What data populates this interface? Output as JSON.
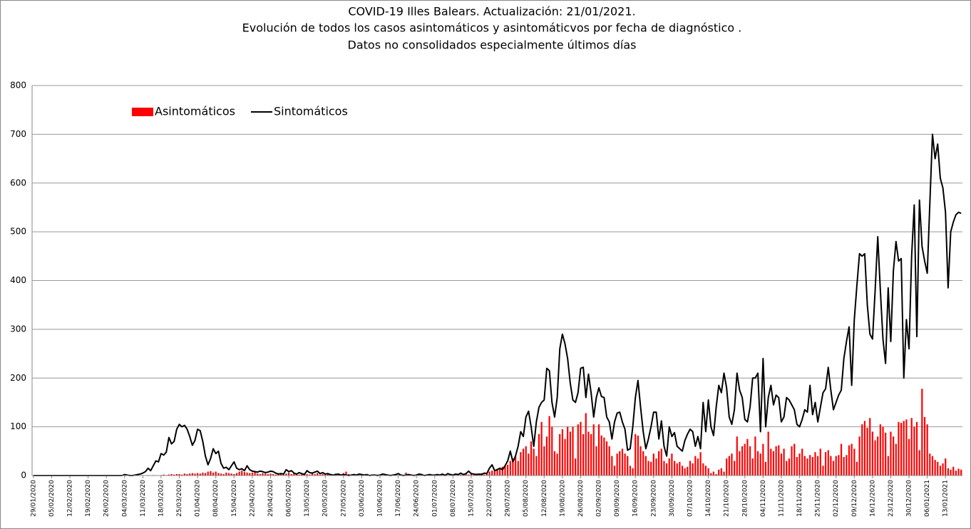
{
  "chart_data": {
    "type": "bar_line",
    "title": [
      "COVID-19 Illes Balears. Actualización: 21/01/2021.",
      "Evolución de todos los casos  asintomáticos y asintomáticvos por fecha de diagnóstico .",
      "Datos no consolidados especialmente últimos días"
    ],
    "categories": [
      "29/01/2020",
      null,
      null,
      null,
      null,
      null,
      null,
      "05/02/2020",
      null,
      null,
      null,
      null,
      null,
      null,
      "12/02/2020",
      null,
      null,
      null,
      null,
      null,
      null,
      "19/02/2020",
      null,
      null,
      null,
      null,
      null,
      null,
      "26/02/2020",
      null,
      null,
      null,
      null,
      null,
      null,
      "04/03/2020",
      null,
      null,
      null,
      null,
      null,
      null,
      "11/03/2020",
      null,
      null,
      null,
      null,
      null,
      null,
      "18/03/2020",
      null,
      null,
      null,
      null,
      null,
      null,
      "25/03/2020",
      null,
      null,
      null,
      null,
      null,
      null,
      "01/04/2020",
      null,
      null,
      null,
      null,
      null,
      null,
      "08/04/2020",
      null,
      null,
      null,
      null,
      null,
      null,
      "15/04/2020",
      null,
      null,
      null,
      null,
      null,
      null,
      "22/04/2020",
      null,
      null,
      null,
      null,
      null,
      null,
      "29/04/2020",
      null,
      null,
      null,
      null,
      null,
      null,
      "06/05/2020",
      null,
      null,
      null,
      null,
      null,
      null,
      "13/05/2020",
      null,
      null,
      null,
      null,
      null,
      null,
      "20/05/2020",
      null,
      null,
      null,
      null,
      null,
      null,
      "27/05/2020",
      null,
      null,
      null,
      null,
      null,
      null,
      "03/06/2020",
      null,
      null,
      null,
      null,
      null,
      null,
      "10/06/2020",
      null,
      null,
      null,
      null,
      null,
      null,
      "17/06/2020",
      null,
      null,
      null,
      null,
      null,
      null,
      "24/06/2020",
      null,
      null,
      null,
      null,
      null,
      null,
      "01/07/2020",
      null,
      null,
      null,
      null,
      null,
      null,
      "08/07/2020",
      null,
      null,
      null,
      null,
      null,
      null,
      "15/07/2020",
      null,
      null,
      null,
      null,
      null,
      null,
      "22/07/2020",
      null,
      null,
      null,
      null,
      null,
      null,
      "29/07/2020",
      null,
      null,
      null,
      null,
      null,
      null,
      "05/08/2020",
      null,
      null,
      null,
      null,
      null,
      null,
      "12/08/2020",
      null,
      null,
      null,
      null,
      null,
      null,
      "19/08/2020",
      null,
      null,
      null,
      null,
      null,
      null,
      "26/08/2020",
      null,
      null,
      null,
      null,
      null,
      null,
      "02/09/2020",
      null,
      null,
      null,
      null,
      null,
      null,
      "09/09/2020",
      null,
      null,
      null,
      null,
      null,
      null,
      "16/09/2020",
      null,
      null,
      null,
      null,
      null,
      null,
      "23/09/2020",
      null,
      null,
      null,
      null,
      null,
      null,
      "30/09/2020",
      null,
      null,
      null,
      null,
      null,
      null,
      "07/10/2020",
      null,
      null,
      null,
      null,
      null,
      null,
      "14/10/2020",
      null,
      null,
      null,
      null,
      null,
      null,
      "21/10/2020",
      null,
      null,
      null,
      null,
      null,
      null,
      "28/10/2020",
      null,
      null,
      null,
      null,
      null,
      null,
      "04/11/2020",
      null,
      null,
      null,
      null,
      null,
      null,
      "11/11/2020",
      null,
      null,
      null,
      null,
      null,
      null,
      "18/11/2020",
      null,
      null,
      null,
      null,
      null,
      null,
      "25/11/2020",
      null,
      null,
      null,
      null,
      null,
      null,
      "02/12/2020",
      null,
      null,
      null,
      null,
      null,
      null,
      "09/12/2020",
      null,
      null,
      null,
      null,
      null,
      null,
      "16/12/2020",
      null,
      null,
      null,
      null,
      null,
      null,
      "23/12/2020",
      null,
      null,
      null,
      null,
      null,
      null,
      "30/12/2020",
      null,
      null,
      null,
      null,
      null,
      null,
      "06/01/2021",
      null,
      null,
      null,
      null,
      null,
      null,
      "13/01/2021",
      null,
      null,
      null,
      null,
      null,
      null
    ],
    "series": [
      {
        "name": "Asintomáticos",
        "type": "bar",
        "color": "#ff0000",
        "values": [
          0,
          0,
          0,
          0,
          0,
          0,
          0,
          0,
          0,
          0,
          0,
          0,
          0,
          0,
          0,
          0,
          0,
          0,
          0,
          0,
          0,
          0,
          0,
          0,
          0,
          0,
          0,
          0,
          0,
          0,
          0,
          0,
          0,
          0,
          0,
          0,
          0,
          0,
          0,
          0,
          0,
          0,
          0,
          0,
          1,
          0,
          1,
          0,
          0,
          1,
          2,
          1,
          2,
          3,
          2,
          3,
          3,
          2,
          4,
          3,
          4,
          5,
          4,
          5,
          4,
          6,
          5,
          8,
          9,
          6,
          8,
          5,
          4,
          3,
          6,
          5,
          4,
          3,
          5,
          8,
          10,
          7,
          6,
          5,
          6,
          8,
          4,
          3,
          5,
          4,
          3,
          4,
          3,
          2,
          5,
          3,
          2,
          4,
          6,
          3,
          5,
          4,
          2,
          3,
          5,
          3,
          2,
          4,
          3,
          5,
          2,
          3,
          2,
          3,
          1,
          2,
          4,
          3,
          2,
          5,
          8,
          3,
          2,
          1,
          2,
          1,
          1,
          0,
          2,
          1,
          0,
          1,
          2,
          0,
          1,
          2,
          1,
          0,
          1,
          0,
          1,
          2,
          0,
          6,
          1,
          0,
          1,
          0,
          2,
          1,
          0,
          1,
          2,
          1,
          1,
          0,
          2,
          1,
          3,
          1,
          2,
          2,
          1,
          3,
          2,
          1,
          4,
          2,
          3,
          2,
          4,
          3,
          5,
          2,
          4,
          8,
          10,
          12,
          14,
          15,
          18,
          20,
          22,
          30,
          35,
          40,
          30,
          48,
          55,
          60,
          45,
          70,
          55,
          40,
          85,
          110,
          60,
          80,
          122,
          100,
          50,
          45,
          85,
          95,
          75,
          100,
          90,
          100,
          35,
          105,
          110,
          85,
          128,
          90,
          85,
          105,
          60,
          105,
          82,
          78,
          70,
          60,
          40,
          20,
          45,
          50,
          55,
          45,
          40,
          20,
          15,
          85,
          82,
          60,
          50,
          40,
          30,
          28,
          45,
          35,
          50,
          55,
          30,
          25,
          35,
          45,
          30,
          25,
          28,
          20,
          15,
          18,
          30,
          25,
          40,
          35,
          48,
          25,
          20,
          15,
          5,
          8,
          3,
          12,
          15,
          8,
          35,
          40,
          45,
          30,
          80,
          50,
          60,
          65,
          75,
          60,
          35,
          80,
          50,
          45,
          65,
          28,
          90,
          55,
          50,
          60,
          62,
          45,
          55,
          30,
          35,
          60,
          65,
          38,
          45,
          55,
          40,
          35,
          42,
          38,
          48,
          40,
          55,
          20,
          48,
          52,
          40,
          30,
          40,
          42,
          65,
          38,
          42,
          62,
          65,
          55,
          28,
          80,
          105,
          112,
          98,
          118,
          90,
          72,
          80,
          105,
          100,
          88,
          40,
          90,
          80,
          65,
          110,
          108,
          112,
          115,
          75,
          118,
          100,
          110,
          52,
          178,
          120,
          105,
          45,
          40,
          32,
          28,
          20,
          25,
          35,
          15,
          12,
          18,
          10,
          14,
          12
        ]
      },
      {
        "name": "Sintomáticos",
        "type": "line",
        "color": "#000000",
        "values": [
          0,
          0,
          0,
          0,
          0,
          0,
          0,
          0,
          0,
          0,
          0,
          0,
          0,
          0,
          0,
          0,
          0,
          0,
          0,
          0,
          0,
          0,
          0,
          0,
          0,
          0,
          0,
          0,
          0,
          0,
          0,
          0,
          0,
          0,
          0,
          2,
          1,
          0,
          0,
          1,
          2,
          3,
          5,
          8,
          15,
          10,
          20,
          30,
          28,
          45,
          42,
          48,
          78,
          65,
          70,
          95,
          105,
          100,
          103,
          95,
          80,
          62,
          72,
          95,
          92,
          70,
          40,
          22,
          35,
          55,
          45,
          50,
          25,
          15,
          17,
          12,
          20,
          28,
          15,
          12,
          14,
          10,
          20,
          12,
          9,
          8,
          7,
          9,
          8,
          6,
          7,
          9,
          8,
          5,
          3,
          4,
          3,
          12,
          8,
          10,
          5,
          3,
          6,
          4,
          2,
          10,
          6,
          5,
          7,
          9,
          4,
          6,
          3,
          4,
          2,
          1,
          2,
          3,
          1,
          2,
          1,
          0,
          1,
          2,
          1,
          3,
          2,
          1,
          2,
          0,
          1,
          1,
          0,
          1,
          3,
          2,
          1,
          0,
          1,
          2,
          4,
          1,
          0,
          1,
          2,
          1,
          0,
          1,
          3,
          2,
          0,
          1,
          2,
          1,
          1,
          2,
          1,
          3,
          0,
          4,
          2,
          1,
          3,
          2,
          5,
          2,
          4,
          9,
          4,
          3,
          2,
          3,
          2,
          5,
          4,
          15,
          22,
          10,
          12,
          15,
          12,
          20,
          30,
          50,
          28,
          40,
          60,
          90,
          80,
          120,
          132,
          100,
          60,
          110,
          140,
          150,
          155,
          220,
          215,
          150,
          120,
          160,
          260,
          290,
          270,
          240,
          190,
          155,
          150,
          170,
          220,
          222,
          160,
          208,
          170,
          120,
          160,
          180,
          162,
          160,
          120,
          110,
          75,
          110,
          128,
          130,
          110,
          95,
          52,
          55,
          100,
          160,
          195,
          140,
          90,
          55,
          75,
          100,
          130,
          130,
          75,
          112,
          60,
          40,
          100,
          80,
          88,
          60,
          55,
          50,
          72,
          85,
          95,
          90,
          60,
          80,
          55,
          150,
          90,
          155,
          100,
          82,
          140,
          185,
          170,
          210,
          180,
          120,
          105,
          135,
          210,
          175,
          160,
          115,
          110,
          140,
          200,
          200,
          210,
          90,
          240,
          100,
          160,
          185,
          145,
          165,
          160,
          110,
          120,
          160,
          155,
          145,
          135,
          105,
          100,
          115,
          135,
          130,
          185,
          125,
          150,
          110,
          140,
          170,
          178,
          222,
          175,
          135,
          150,
          165,
          175,
          240,
          275,
          305,
          185,
          320,
          390,
          455,
          450,
          455,
          350,
          290,
          280,
          380,
          490,
          380,
          280,
          230,
          385,
          275,
          420,
          480,
          440,
          445,
          200,
          320,
          260,
          450,
          555,
          285,
          565,
          470,
          440,
          415,
          560,
          700,
          650,
          680,
          610,
          590,
          540,
          385,
          500,
          520,
          535,
          540,
          538
        ]
      }
    ],
    "ylim": [
      0,
      800
    ],
    "yticks": [
      0,
      100,
      200,
      300,
      400,
      500,
      600,
      700,
      800
    ],
    "grid": true,
    "legend": "top-left"
  }
}
